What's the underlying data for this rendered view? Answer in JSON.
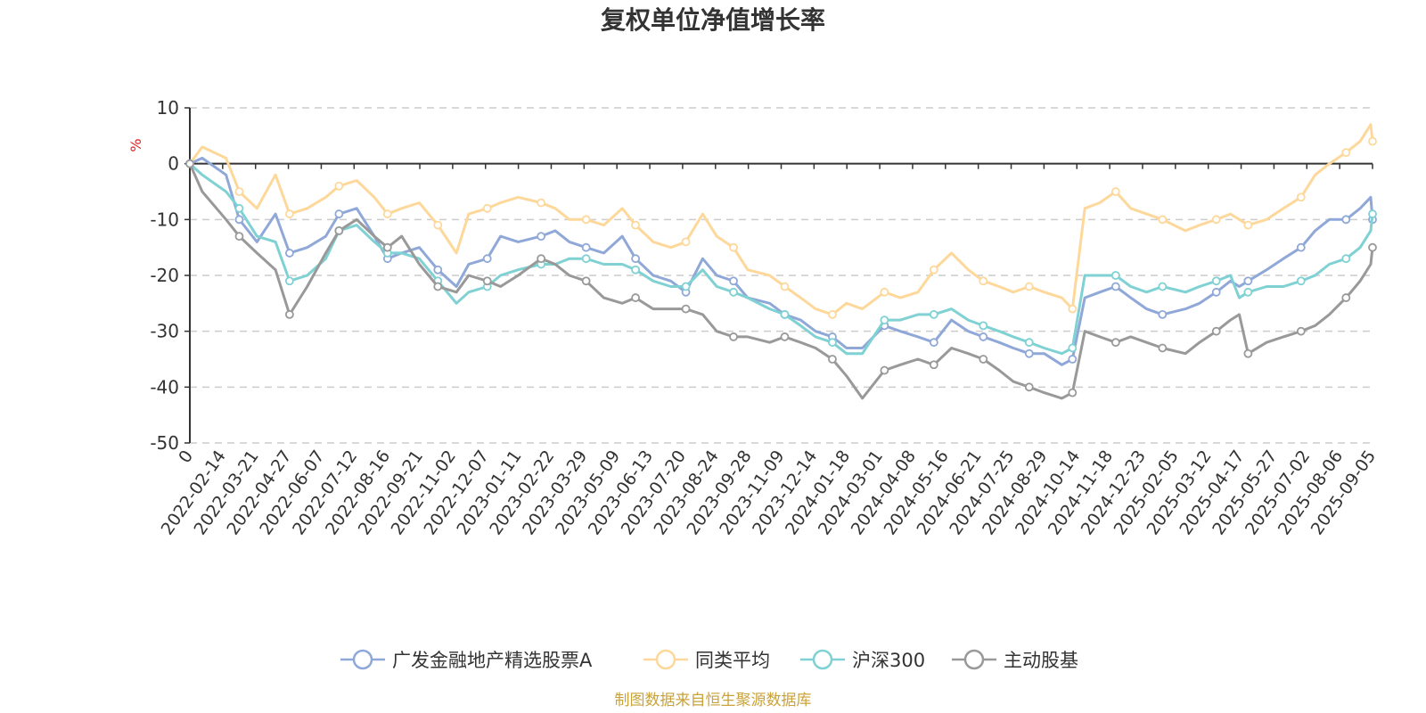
{
  "chart_data": {
    "type": "line",
    "title": "复权单位净值增长率",
    "ylabel": "%",
    "ylim": [
      -50,
      10
    ],
    "yticks": [
      10,
      0,
      -10,
      -20,
      -30,
      -40,
      -50
    ],
    "grid": true,
    "legend_position": "bottom",
    "x_tick_labels": [
      "0",
      "2022-02-14",
      "2022-03-21",
      "2022-04-27",
      "2022-06-07",
      "2022-07-12",
      "2022-08-16",
      "2022-09-21",
      "2022-11-02",
      "2022-12-07",
      "2023-01-11",
      "2023-02-22",
      "2023-03-29",
      "2023-05-09",
      "2023-06-13",
      "2023-07-20",
      "2023-08-24",
      "2023-09-28",
      "2023-11-09",
      "2023-12-14",
      "2024-01-18",
      "2024-03-01",
      "2024-04-08",
      "2024-05-16",
      "2024-06-21",
      "2024-07-25",
      "2024-08-29",
      "2024-10-14",
      "2024-11-18",
      "2024-12-23",
      "2025-02-05",
      "2025-03-12",
      "2025-04-17",
      "2025-05-27",
      "2025-07-02",
      "2025-08-06",
      "2025-09-05"
    ],
    "x": [
      "2022-01-04",
      "2022-01-18",
      "2022-02-14",
      "2022-03-01",
      "2022-03-21",
      "2022-04-11",
      "2022-04-27",
      "2022-05-17",
      "2022-06-07",
      "2022-06-22",
      "2022-07-12",
      "2022-08-01",
      "2022-08-16",
      "2022-09-01",
      "2022-09-21",
      "2022-10-12",
      "2022-11-02",
      "2022-11-16",
      "2022-12-07",
      "2022-12-22",
      "2023-01-11",
      "2023-02-06",
      "2023-02-22",
      "2023-03-10",
      "2023-03-29",
      "2023-04-18",
      "2023-05-09",
      "2023-05-24",
      "2023-06-13",
      "2023-07-03",
      "2023-07-20",
      "2023-08-08",
      "2023-08-24",
      "2023-09-12",
      "2023-09-28",
      "2023-10-23",
      "2023-11-09",
      "2023-11-27",
      "2023-12-14",
      "2024-01-02",
      "2024-01-18",
      "2024-02-05",
      "2024-03-01",
      "2024-03-19",
      "2024-04-08",
      "2024-04-26",
      "2024-05-16",
      "2024-06-04",
      "2024-06-21",
      "2024-07-09",
      "2024-07-25",
      "2024-08-12",
      "2024-08-29",
      "2024-09-18",
      "2024-09-30",
      "2024-10-14",
      "2024-10-31",
      "2024-11-18",
      "2024-12-05",
      "2024-12-23",
      "2025-01-10",
      "2025-02-05",
      "2025-02-21",
      "2025-03-12",
      "2025-03-28",
      "2025-04-07",
      "2025-04-17",
      "2025-05-08",
      "2025-05-27",
      "2025-06-16",
      "2025-07-02",
      "2025-07-18",
      "2025-08-06",
      "2025-08-22",
      "2025-09-03",
      "2025-09-05"
    ],
    "series": [
      {
        "name": "广发金融地产精选股票A",
        "color": "#8fa8d8",
        "values": [
          0,
          1,
          -2,
          -10,
          -14,
          -9,
          -16,
          -15,
          -13,
          -9,
          -8,
          -13,
          -17,
          -16,
          -15,
          -19,
          -22,
          -18,
          -17,
          -13,
          -14,
          -13,
          -12,
          -14,
          -15,
          -16,
          -13,
          -17,
          -20,
          -21,
          -23,
          -17,
          -20,
          -21,
          -24,
          -25,
          -27,
          -28,
          -30,
          -31,
          -33,
          -33,
          -29,
          -30,
          -31,
          -32,
          -28,
          -30,
          -31,
          -32,
          -33,
          -34,
          -34,
          -36,
          -35,
          -24,
          -23,
          -22,
          -24,
          -26,
          -27,
          -26,
          -25,
          -23,
          -21,
          -22,
          -21,
          -19,
          -17,
          -15,
          -12,
          -10,
          -10,
          -8,
          -6,
          -10
        ]
      },
      {
        "name": "同类平均",
        "color": "#fdd89a",
        "values": [
          0,
          3,
          1,
          -5,
          -8,
          -2,
          -9,
          -8,
          -6,
          -4,
          -3,
          -6,
          -9,
          -8,
          -7,
          -11,
          -16,
          -9,
          -8,
          -7,
          -6,
          -7,
          -8,
          -10,
          -10,
          -11,
          -8,
          -11,
          -14,
          -15,
          -14,
          -9,
          -13,
          -15,
          -19,
          -20,
          -22,
          -24,
          -26,
          -27,
          -25,
          -26,
          -23,
          -24,
          -23,
          -19,
          -16,
          -19,
          -21,
          -22,
          -23,
          -22,
          -23,
          -24,
          -26,
          -8,
          -7,
          -5,
          -8,
          -9,
          -10,
          -12,
          -11,
          -10,
          -9,
          -10,
          -11,
          -10,
          -8,
          -6,
          -2,
          0,
          2,
          4,
          7,
          4
        ]
      },
      {
        "name": "沪深300",
        "color": "#7fd1d3",
        "values": [
          0,
          -2,
          -5,
          -8,
          -13,
          -14,
          -21,
          -20,
          -17,
          -12,
          -11,
          -14,
          -16,
          -16,
          -17,
          -21,
          -25,
          -23,
          -22,
          -20,
          -19,
          -18,
          -18,
          -17,
          -17,
          -18,
          -18,
          -19,
          -21,
          -22,
          -22,
          -19,
          -22,
          -23,
          -24,
          -26,
          -27,
          -29,
          -31,
          -32,
          -34,
          -34,
          -28,
          -28,
          -27,
          -27,
          -26,
          -28,
          -29,
          -30,
          -31,
          -32,
          -33,
          -34,
          -33,
          -20,
          -20,
          -20,
          -22,
          -23,
          -22,
          -23,
          -22,
          -21,
          -20,
          -24,
          -23,
          -22,
          -22,
          -21,
          -20,
          -18,
          -17,
          -15,
          -12,
          -9
        ]
      },
      {
        "name": "主动股基",
        "color": "#999999",
        "values": [
          0,
          -5,
          -10,
          -13,
          -16,
          -19,
          -27,
          -22,
          -16,
          -12,
          -10,
          -13,
          -15,
          -13,
          -18,
          -22,
          -23,
          -20,
          -21,
          -22,
          -20,
          -17,
          -18,
          -20,
          -21,
          -24,
          -25,
          -24,
          -26,
          -26,
          -26,
          -27,
          -30,
          -31,
          -31,
          -32,
          -31,
          -32,
          -33,
          -35,
          -38,
          -42,
          -37,
          -36,
          -35,
          -36,
          -33,
          -34,
          -35,
          -37,
          -39,
          -40,
          -41,
          -42,
          -41,
          -30,
          -31,
          -32,
          -31,
          -32,
          -33,
          -34,
          -32,
          -30,
          -28,
          -27,
          -34,
          -32,
          -31,
          -30,
          -29,
          -27,
          -24,
          -21,
          -18,
          -15
        ]
      }
    ]
  },
  "footer_text": "制图数据来自恒生聚源数据库",
  "colors": {
    "footer": "#c9a23a",
    "unit": "#e02020",
    "axis": "#333333",
    "grid": "#cccccc"
  }
}
